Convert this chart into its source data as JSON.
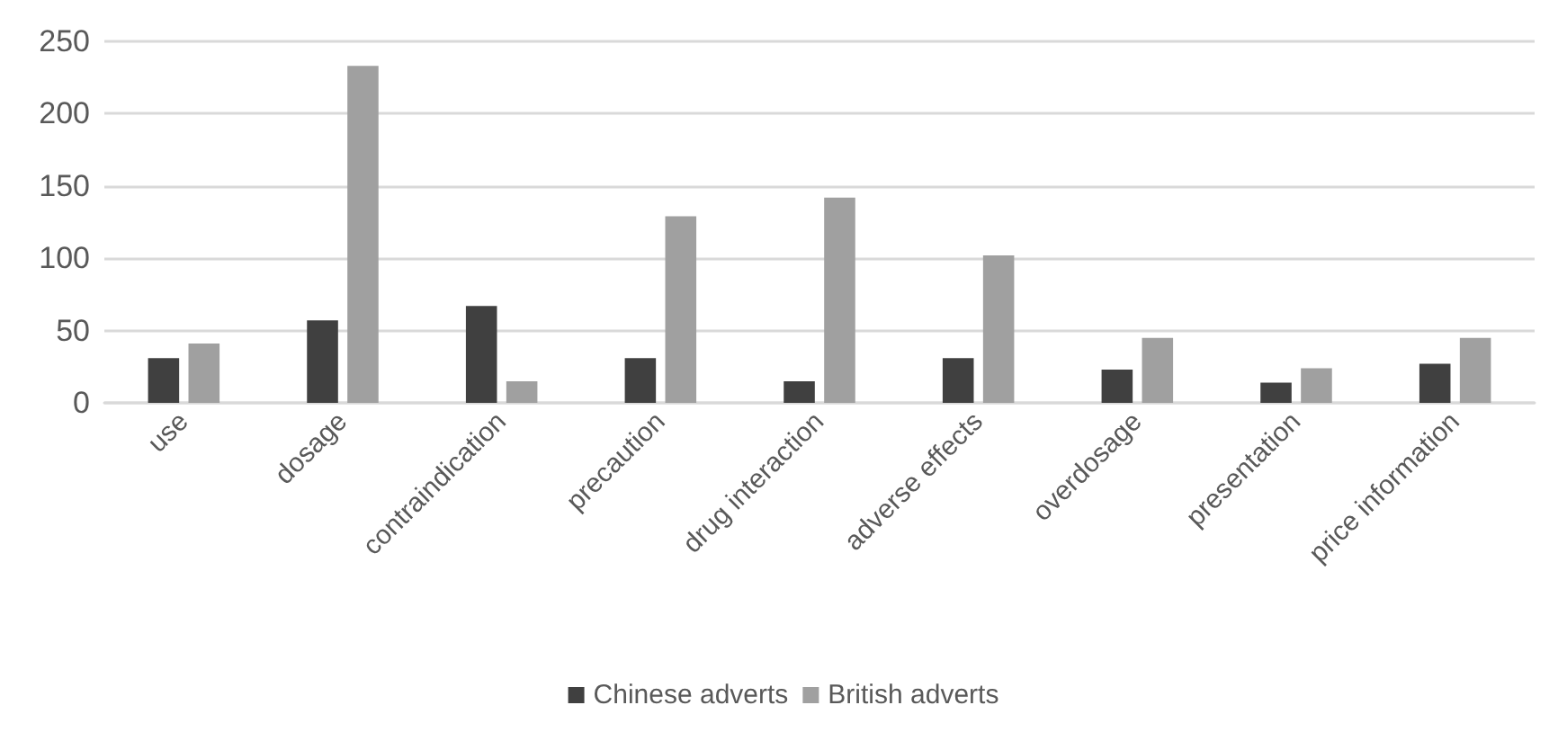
{
  "chart_data": {
    "type": "bar",
    "categories": [
      "use",
      "dosage",
      "contraindication",
      "precaution",
      "drug interaction",
      "adverse effects",
      "overdosage",
      "presentation",
      "price information"
    ],
    "series": [
      {
        "name": "Chinese adverts",
        "color": "#404040",
        "values": [
          31,
          57,
          67,
          31,
          15,
          31,
          23,
          14,
          27
        ]
      },
      {
        "name": "British adverts",
        "color": "#a0a0a0",
        "values": [
          41,
          233,
          15,
          129,
          142,
          102,
          45,
          24,
          45
        ]
      }
    ],
    "ylim": [
      0,
      250
    ],
    "yticks": [
      0,
      50,
      100,
      150,
      200,
      250
    ],
    "grid": "y",
    "legend": "bottom"
  }
}
